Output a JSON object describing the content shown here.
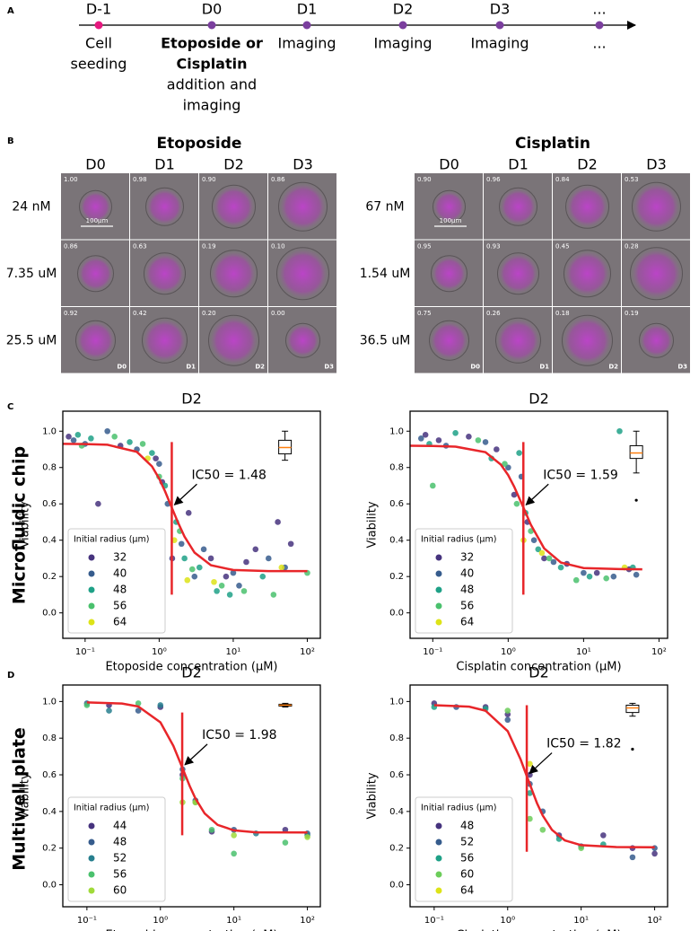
{
  "panel_labels": [
    "A",
    "B",
    "C",
    "D"
  ],
  "timeline": {
    "steps": [
      {
        "day": "D-1",
        "lines": [
          "Cell",
          "seeding"
        ]
      },
      {
        "day": "D0",
        "bold_lines": [
          "Etoposide or",
          "Cisplatin"
        ],
        "lines": [
          "addition and",
          "imaging"
        ]
      },
      {
        "day": "D1",
        "lines": [
          "Imaging"
        ]
      },
      {
        "day": "D2",
        "lines": [
          "Imaging"
        ]
      },
      {
        "day": "D3",
        "lines": [
          "Imaging"
        ]
      },
      {
        "day": "...",
        "lines": [
          "..."
        ]
      }
    ]
  },
  "micrographs": [
    {
      "drug": "Etoposide",
      "days": [
        "D0",
        "D1",
        "D2",
        "D3"
      ],
      "scale_bar": "100µm",
      "rows": [
        {
          "concentration": "24 nM",
          "viability": [
            "1.00",
            "0.98",
            "0.90",
            "0.86"
          ]
        },
        {
          "concentration": "7.35 uM",
          "viability": [
            "0.86",
            "0.63",
            "0.19",
            "0.10"
          ]
        },
        {
          "concentration": "25.5 uM",
          "viability": [
            "0.92",
            "0.42",
            "0.20",
            "0.00"
          ]
        }
      ]
    },
    {
      "drug": "Cisplatin",
      "days": [
        "D0",
        "D1",
        "D2",
        "D3"
      ],
      "scale_bar": "100µm",
      "rows": [
        {
          "concentration": "67 nM",
          "viability": [
            "0.90",
            "0.96",
            "0.84",
            "0.53"
          ]
        },
        {
          "concentration": "1.54 uM",
          "viability": [
            "0.95",
            "0.93",
            "0.45",
            "0.28"
          ]
        },
        {
          "concentration": "36.5 uM",
          "viability": [
            "0.75",
            "0.26",
            "0.18",
            "0.19"
          ]
        }
      ]
    }
  ],
  "row_labels": [
    "Microfluidic chip",
    "Multiwell plate"
  ],
  "chart_data": [
    {
      "type": "scatter",
      "title": "D2",
      "x_label": "Etoposide concentration (µM)",
      "y_label": "Viability",
      "log_x": true,
      "xlim": [
        0.05,
        150
      ],
      "ylim": [
        -0.14,
        1.11
      ],
      "xticks": [
        {
          "value": 0.1,
          "label": "10⁻¹"
        },
        {
          "value": 1,
          "label": "10⁰"
        },
        {
          "value": 10,
          "label": "10¹"
        },
        {
          "value": 100,
          "label": "10²"
        }
      ],
      "yticks": [
        {
          "value": 0,
          "label": "0.0"
        },
        0.2,
        0.4,
        0.6,
        0.8,
        {
          "value": 1,
          "label": "1.0"
        }
      ],
      "legend_title": "Initial radius (µm)",
      "legend_position": "lower-left",
      "series": [
        {
          "name": "32",
          "color": "#46337e",
          "x": [
            0.06,
            0.15,
            0.3,
            0.9,
            1.1,
            1.5,
            2.5,
            5,
            8,
            15,
            20,
            40,
            60
          ],
          "values": [
            0.97,
            0.6,
            0.92,
            0.85,
            0.72,
            0.3,
            0.55,
            0.3,
            0.2,
            0.28,
            0.35,
            0.5,
            0.38
          ]
        },
        {
          "name": "40",
          "color": "#365c8d",
          "x": [
            0.07,
            0.1,
            0.2,
            0.5,
            1.0,
            1.3,
            2,
            3,
            4,
            10,
            12,
            30,
            50
          ],
          "values": [
            0.95,
            0.93,
            1.0,
            0.9,
            0.82,
            0.6,
            0.38,
            0.2,
            0.35,
            0.22,
            0.15,
            0.3,
            0.25
          ]
        },
        {
          "name": "48",
          "color": "#1fa187",
          "x": [
            0.08,
            0.12,
            0.4,
            0.8,
            1.2,
            1.7,
            2.2,
            3.5,
            6,
            9,
            25
          ],
          "values": [
            0.98,
            0.96,
            0.94,
            0.88,
            0.7,
            0.5,
            0.3,
            0.25,
            0.12,
            0.1,
            0.2
          ]
        },
        {
          "name": "56",
          "color": "#4ac16d",
          "x": [
            0.09,
            0.25,
            0.6,
            1.0,
            1.9,
            2.8,
            7,
            14,
            35,
            100
          ],
          "values": [
            0.92,
            0.97,
            0.93,
            0.75,
            0.45,
            0.24,
            0.15,
            0.12,
            0.1,
            0.22
          ]
        },
        {
          "name": "64",
          "color": "#dde318",
          "x": [
            0.7,
            1.6,
            2.4,
            5.5,
            45
          ],
          "values": [
            0.85,
            0.4,
            0.18,
            0.17,
            0.25
          ]
        }
      ],
      "fit": {
        "color": "#e8262a",
        "x": [
          0.05,
          0.1,
          0.2,
          0.5,
          0.8,
          1,
          1.2,
          1.48,
          1.8,
          2.2,
          3,
          5,
          10,
          30,
          100
        ],
        "values": [
          0.93,
          0.929,
          0.925,
          0.886,
          0.806,
          0.739,
          0.67,
          0.58,
          0.496,
          0.42,
          0.332,
          0.262,
          0.236,
          0.23,
          0.23
        ]
      },
      "ic50": {
        "value": 1.48,
        "y": 0.58,
        "label": "IC50 = 1.48",
        "line": [
          0.1,
          0.94
        ]
      },
      "box": {
        "x": 50,
        "whislo": 0.84,
        "q1": 0.875,
        "med": 0.91,
        "q3": 0.95,
        "whishi": 1.0,
        "fliers": []
      }
    },
    {
      "type": "scatter",
      "title": "D2",
      "x_label": "Cisplatin concentration (µM)",
      "y_label": "Viability",
      "log_x": true,
      "xlim": [
        0.05,
        130
      ],
      "ylim": [
        -0.14,
        1.11
      ],
      "xticks": [
        {
          "value": 0.1,
          "label": "10⁻¹"
        },
        {
          "value": 1,
          "label": "10⁰"
        },
        {
          "value": 10,
          "label": "10¹"
        },
        {
          "value": 100,
          "label": "10²"
        }
      ],
      "yticks": [
        {
          "value": 0,
          "label": "0.0"
        },
        0.2,
        0.4,
        0.6,
        0.8,
        {
          "value": 1,
          "label": "1.0"
        }
      ],
      "legend_title": "Initial radius (µm)",
      "legend_position": "lower-left",
      "series": [
        {
          "name": "32",
          "color": "#46337e",
          "x": [
            0.08,
            0.12,
            0.3,
            0.7,
            1.2,
            1.8,
            3,
            6,
            15,
            40
          ],
          "values": [
            0.98,
            0.95,
            0.97,
            0.9,
            0.65,
            0.5,
            0.3,
            0.27,
            0.22,
            0.24
          ]
        },
        {
          "name": "40",
          "color": "#365c8d",
          "x": [
            0.07,
            0.15,
            0.5,
            1.0,
            1.5,
            2.2,
            4,
            10,
            25,
            50
          ],
          "values": [
            0.96,
            0.92,
            0.94,
            0.8,
            0.75,
            0.4,
            0.28,
            0.22,
            0.2,
            0.21
          ]
        },
        {
          "name": "48",
          "color": "#1fa187",
          "x": [
            0.09,
            0.2,
            0.6,
            1.4,
            1.7,
            2.5,
            5,
            12,
            30,
            45
          ],
          "values": [
            0.93,
            0.99,
            0.85,
            0.88,
            0.55,
            0.35,
            0.25,
            0.2,
            1.0,
            0.25
          ]
        },
        {
          "name": "56",
          "color": "#4ac16d",
          "x": [
            0.1,
            0.4,
            0.9,
            1.3,
            2.0,
            3.5,
            8,
            20
          ],
          "values": [
            0.7,
            0.95,
            0.82,
            0.6,
            0.45,
            0.3,
            0.18,
            0.19
          ]
        },
        {
          "name": "64",
          "color": "#dde318",
          "x": [
            1.6,
            2.8,
            35
          ],
          "values": [
            0.4,
            0.33,
            0.25
          ]
        }
      ],
      "fit": {
        "color": "#e8262a",
        "x": [
          0.05,
          0.1,
          0.2,
          0.5,
          0.8,
          1,
          1.2,
          1.59,
          2,
          3,
          5,
          10,
          30,
          60
        ],
        "values": [
          0.92,
          0.919,
          0.915,
          0.884,
          0.816,
          0.758,
          0.695,
          0.58,
          0.485,
          0.355,
          0.277,
          0.247,
          0.241,
          0.24
        ]
      },
      "ic50": {
        "value": 1.59,
        "y": 0.58,
        "label": "IC50 = 1.59",
        "line": [
          0.1,
          0.94
        ]
      },
      "box": {
        "x": 50,
        "whislo": 0.77,
        "q1": 0.85,
        "med": 0.88,
        "q3": 0.92,
        "whishi": 1.0,
        "fliers": [
          0.62
        ]
      }
    },
    {
      "type": "scatter",
      "title": "D2",
      "x_label": "Etoposide concentration (µM)",
      "y_label": "Viability",
      "log_x": true,
      "xlim": [
        0.047,
        150
      ],
      "ylim": [
        -0.12,
        1.09
      ],
      "xticks": [
        {
          "value": 0.1,
          "label": "10⁻¹"
        },
        {
          "value": 1,
          "label": "10⁰"
        },
        {
          "value": 10,
          "label": "10¹"
        },
        {
          "value": 100,
          "label": "10²"
        }
      ],
      "yticks": [
        {
          "value": 0,
          "label": "0.0"
        },
        0.2,
        0.4,
        0.6,
        0.8,
        {
          "value": 1,
          "label": "1.0"
        }
      ],
      "legend_title": "Initial radius (µm)",
      "legend_position": "lower-left",
      "series": [
        {
          "name": "44",
          "color": "#46337e",
          "x": [
            0.2,
            1,
            2,
            5,
            50
          ],
          "values": [
            0.98,
            0.97,
            0.6,
            0.29,
            0.3
          ]
        },
        {
          "name": "48",
          "color": "#365c8d",
          "x": [
            0.1,
            0.5,
            2,
            3,
            10,
            100
          ],
          "values": [
            0.99,
            0.95,
            0.63,
            0.46,
            0.3,
            0.28
          ]
        },
        {
          "name": "52",
          "color": "#277f8e",
          "x": [
            0.2,
            1,
            3,
            20,
            100
          ],
          "values": [
            0.95,
            0.98,
            0.45,
            0.28,
            0.27
          ]
        },
        {
          "name": "56",
          "color": "#4ac16d",
          "x": [
            0.1,
            0.5,
            2,
            5,
            10,
            50
          ],
          "values": [
            0.98,
            0.99,
            0.58,
            0.3,
            0.17,
            0.23
          ]
        },
        {
          "name": "60",
          "color": "#a0da39",
          "x": [
            2,
            3,
            10,
            100
          ],
          "values": [
            0.45,
            0.45,
            0.27,
            0.26
          ]
        }
      ],
      "fit": {
        "color": "#e8262a",
        "x": [
          0.1,
          0.3,
          0.5,
          1,
          1.5,
          1.98,
          2.5,
          3,
          4,
          6,
          10,
          20,
          100
        ],
        "values": [
          0.995,
          0.989,
          0.973,
          0.886,
          0.758,
          0.64,
          0.539,
          0.471,
          0.389,
          0.327,
          0.297,
          0.286,
          0.285
        ]
      },
      "ic50": {
        "value": 1.98,
        "y": 0.64,
        "label": "IC50 = 1.98",
        "line": [
          0.27,
          0.94
        ]
      },
      "box": {
        "x": 50,
        "whislo": 0.97,
        "q1": 0.975,
        "med": 0.98,
        "q3": 0.985,
        "whishi": 0.99,
        "fliers": []
      }
    },
    {
      "type": "scatter",
      "title": "D2",
      "x_label": "Cisplatin concentration (µM)",
      "y_label": "Viability",
      "log_x": true,
      "xlim": [
        0.047,
        150
      ],
      "ylim": [
        -0.12,
        1.09
      ],
      "xticks": [
        {
          "value": 0.1,
          "label": "10⁻¹"
        },
        {
          "value": 1,
          "label": "10⁰"
        },
        {
          "value": 10,
          "label": "10¹"
        },
        {
          "value": 100,
          "label": "10²"
        }
      ],
      "yticks": [
        {
          "value": 0,
          "label": "0.0"
        },
        0.2,
        0.4,
        0.6,
        0.8,
        {
          "value": 1,
          "label": "1.0"
        }
      ],
      "legend_title": "Initial radius (µm)",
      "legend_position": "lower-left",
      "series": [
        {
          "name": "48",
          "color": "#46337e",
          "x": [
            0.1,
            0.5,
            1,
            2,
            5,
            20,
            50,
            100
          ],
          "values": [
            0.99,
            0.97,
            0.93,
            0.6,
            0.27,
            0.27,
            0.2,
            0.17
          ]
        },
        {
          "name": "52",
          "color": "#365c8d",
          "x": [
            0.2,
            1,
            2,
            3,
            10,
            50,
            100
          ],
          "values": [
            0.97,
            0.9,
            0.55,
            0.4,
            0.21,
            0.15,
            0.2
          ]
        },
        {
          "name": "56",
          "color": "#1fa187",
          "x": [
            0.1,
            0.5,
            2,
            5,
            20
          ],
          "values": [
            0.97,
            0.96,
            0.5,
            0.25,
            0.22
          ]
        },
        {
          "name": "60",
          "color": "#6ccd5a",
          "x": [
            1,
            2,
            3,
            10
          ],
          "values": [
            0.95,
            0.36,
            0.3,
            0.2
          ]
        },
        {
          "name": "64",
          "color": "#dde318",
          "x": [
            2
          ],
          "values": [
            0.66
          ]
        }
      ],
      "fit": {
        "color": "#e8262a",
        "x": [
          0.1,
          0.3,
          0.5,
          1,
          1.5,
          1.82,
          2.5,
          3,
          4,
          6,
          10,
          30,
          100
        ],
        "values": [
          0.98,
          0.972,
          0.95,
          0.838,
          0.684,
          0.5925,
          0.446,
          0.378,
          0.3,
          0.242,
          0.216,
          0.206,
          0.205
        ]
      },
      "ic50": {
        "value": 1.82,
        "y": 0.5925,
        "label": "IC50 = 1.82",
        "line": [
          0.18,
          0.98
        ]
      },
      "box": {
        "x": 50,
        "whislo": 0.92,
        "q1": 0.94,
        "med": 0.965,
        "q3": 0.98,
        "whishi": 0.99,
        "fliers": [
          0.74
        ]
      }
    }
  ]
}
